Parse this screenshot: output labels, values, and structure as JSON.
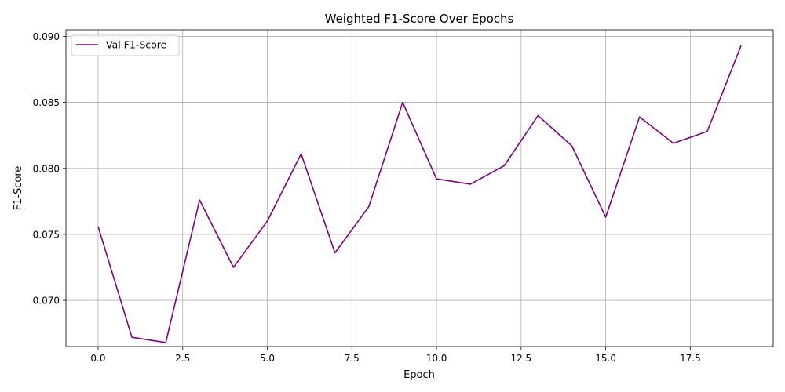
{
  "chart_data": {
    "type": "line",
    "title": "Weighted F1-Score Over Epochs",
    "xlabel": "Epoch",
    "ylabel": "F1-Score",
    "xlim": [
      -0.95,
      19.95
    ],
    "ylim": [
      0.0665,
      0.0905
    ],
    "xticks": [
      0.0,
      2.5,
      5.0,
      7.5,
      10.0,
      12.5,
      15.0,
      17.5
    ],
    "xtick_labels": [
      "0.0",
      "2.5",
      "5.0",
      "7.5",
      "10.0",
      "12.5",
      "15.0",
      "17.5"
    ],
    "yticks": [
      0.07,
      0.075,
      0.08,
      0.085,
      0.09
    ],
    "ytick_labels": [
      "0.070",
      "0.075",
      "0.080",
      "0.085",
      "0.090"
    ],
    "grid": true,
    "legend_position": "top-left",
    "series": [
      {
        "name": "Val F1-Score",
        "color": "#800080",
        "x": [
          0,
          1,
          2,
          3,
          4,
          5,
          6,
          7,
          8,
          9,
          10,
          11,
          12,
          13,
          14,
          15,
          16,
          17,
          18,
          19
        ],
        "y": [
          0.0756,
          0.0672,
          0.0668,
          0.0776,
          0.0725,
          0.076,
          0.0811,
          0.0736,
          0.0771,
          0.085,
          0.0792,
          0.0788,
          0.0802,
          0.084,
          0.0817,
          0.0763,
          0.0839,
          0.0819,
          0.0828,
          0.0893
        ]
      }
    ]
  }
}
